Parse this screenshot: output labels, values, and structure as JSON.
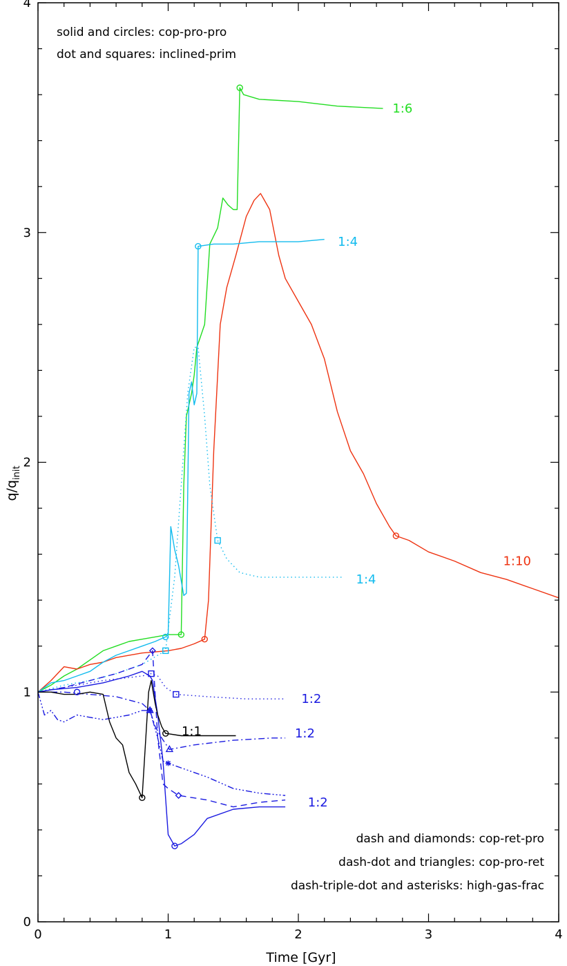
{
  "chart_data": {
    "type": "line",
    "xlabel": "Time [Gyr]",
    "ylabel_main": "q/q",
    "ylabel_sub": "init",
    "xlim": [
      0,
      4
    ],
    "ylim": [
      0,
      4
    ],
    "x_ticks": [
      "0",
      "1",
      "2",
      "3",
      "4"
    ],
    "y_ticks": [
      "0",
      "1",
      "2",
      "3",
      "4"
    ],
    "legend_top": [
      "solid and circles: cop-pro-pro",
      "dot and squares: inclined-prim"
    ],
    "legend_bottom": [
      "dash and diamonds: cop-ret-pro",
      "dash-dot and triangles: cop-pro-ret",
      "dash-triple-dot and asterisks: high-gas-frac"
    ],
    "colors": {
      "green": "#22dd22",
      "red": "#ee3311",
      "cyan": "#11bbee",
      "blue": "#1a1ae0",
      "black": "#000000"
    },
    "labels": [
      {
        "text": "1:6",
        "x": 2.8,
        "y": 3.54,
        "color": "green"
      },
      {
        "text": "1:4",
        "x": 2.38,
        "y": 2.96,
        "color": "cyan"
      },
      {
        "text": "1:10",
        "x": 3.68,
        "y": 1.57,
        "color": "red"
      },
      {
        "text": "1:4",
        "x": 2.52,
        "y": 1.49,
        "color": "cyan"
      },
      {
        "text": "1:2",
        "x": 2.1,
        "y": 0.97,
        "color": "blue"
      },
      {
        "text": "1:1",
        "x": 1.18,
        "y": 0.83,
        "color": "black"
      },
      {
        "text": "1:2",
        "x": 2.05,
        "y": 0.82,
        "color": "blue"
      },
      {
        "text": "1:2",
        "x": 2.15,
        "y": 0.52,
        "color": "blue"
      }
    ],
    "series": [
      {
        "color": "green",
        "style": "solid",
        "marker": "circle",
        "marker_points": [
          [
            1.1,
            1.25
          ],
          [
            1.55,
            3.63
          ]
        ],
        "points": [
          [
            0,
            1.0
          ],
          [
            0.1,
            1.03
          ],
          [
            0.2,
            1.07
          ],
          [
            0.3,
            1.1
          ],
          [
            0.4,
            1.14
          ],
          [
            0.5,
            1.18
          ],
          [
            0.6,
            1.2
          ],
          [
            0.7,
            1.22
          ],
          [
            0.8,
            1.23
          ],
          [
            0.9,
            1.24
          ],
          [
            1.0,
            1.25
          ],
          [
            1.05,
            1.25
          ],
          [
            1.1,
            1.25
          ],
          [
            1.12,
            1.9
          ],
          [
            1.14,
            2.2
          ],
          [
            1.18,
            2.3
          ],
          [
            1.2,
            2.38
          ],
          [
            1.22,
            2.5
          ],
          [
            1.28,
            2.6
          ],
          [
            1.32,
            2.95
          ],
          [
            1.38,
            3.02
          ],
          [
            1.42,
            3.15
          ],
          [
            1.46,
            3.12
          ],
          [
            1.5,
            3.1
          ],
          [
            1.53,
            3.1
          ],
          [
            1.55,
            3.63
          ],
          [
            1.58,
            3.6
          ],
          [
            1.7,
            3.58
          ],
          [
            2.0,
            3.57
          ],
          [
            2.3,
            3.55
          ],
          [
            2.65,
            3.54
          ]
        ]
      },
      {
        "color": "red",
        "style": "solid",
        "marker": "circle",
        "marker_points": [
          [
            1.28,
            1.23
          ],
          [
            2.75,
            1.68
          ]
        ],
        "points": [
          [
            0,
            1.0
          ],
          [
            0.1,
            1.05
          ],
          [
            0.2,
            1.11
          ],
          [
            0.3,
            1.1
          ],
          [
            0.4,
            1.12
          ],
          [
            0.5,
            1.13
          ],
          [
            0.6,
            1.15
          ],
          [
            0.8,
            1.17
          ],
          [
            1.0,
            1.18
          ],
          [
            1.1,
            1.19
          ],
          [
            1.2,
            1.21
          ],
          [
            1.28,
            1.23
          ],
          [
            1.31,
            1.4
          ],
          [
            1.35,
            2.05
          ],
          [
            1.4,
            2.6
          ],
          [
            1.45,
            2.76
          ],
          [
            1.52,
            2.9
          ],
          [
            1.6,
            3.07
          ],
          [
            1.66,
            3.14
          ],
          [
            1.71,
            3.17
          ],
          [
            1.78,
            3.1
          ],
          [
            1.85,
            2.9
          ],
          [
            1.9,
            2.8
          ],
          [
            2.0,
            2.7
          ],
          [
            2.1,
            2.6
          ],
          [
            2.2,
            2.45
          ],
          [
            2.3,
            2.22
          ],
          [
            2.4,
            2.05
          ],
          [
            2.5,
            1.95
          ],
          [
            2.6,
            1.82
          ],
          [
            2.7,
            1.72
          ],
          [
            2.75,
            1.68
          ],
          [
            2.85,
            1.66
          ],
          [
            3.0,
            1.61
          ],
          [
            3.2,
            1.57
          ],
          [
            3.4,
            1.52
          ],
          [
            3.6,
            1.49
          ],
          [
            3.8,
            1.45
          ],
          [
            4.0,
            1.41
          ]
        ]
      },
      {
        "color": "cyan",
        "style": "solid",
        "marker": "circle",
        "marker_points": [
          [
            0.98,
            1.24
          ],
          [
            1.23,
            2.94
          ]
        ],
        "points": [
          [
            0,
            1.0
          ],
          [
            0.1,
            1.04
          ],
          [
            0.2,
            1.05
          ],
          [
            0.3,
            1.07
          ],
          [
            0.4,
            1.09
          ],
          [
            0.5,
            1.13
          ],
          [
            0.6,
            1.16
          ],
          [
            0.7,
            1.18
          ],
          [
            0.8,
            1.2
          ],
          [
            0.9,
            1.22
          ],
          [
            0.98,
            1.24
          ],
          [
            1.0,
            1.25
          ],
          [
            1.02,
            1.72
          ],
          [
            1.05,
            1.62
          ],
          [
            1.08,
            1.55
          ],
          [
            1.12,
            1.42
          ],
          [
            1.14,
            1.43
          ],
          [
            1.16,
            2.3
          ],
          [
            1.18,
            2.35
          ],
          [
            1.2,
            2.25
          ],
          [
            1.22,
            2.3
          ],
          [
            1.23,
            2.94
          ],
          [
            1.35,
            2.95
          ],
          [
            1.5,
            2.95
          ],
          [
            1.7,
            2.96
          ],
          [
            2.0,
            2.96
          ],
          [
            2.2,
            2.97
          ]
        ]
      },
      {
        "color": "cyan",
        "style": "dot",
        "marker": "square",
        "marker_points": [
          [
            0.98,
            1.18
          ],
          [
            1.38,
            1.66
          ]
        ],
        "points": [
          [
            0,
            1.0
          ],
          [
            0.2,
            1.03
          ],
          [
            0.4,
            1.05
          ],
          [
            0.6,
            1.08
          ],
          [
            0.8,
            1.12
          ],
          [
            0.98,
            1.18
          ],
          [
            1.05,
            1.5
          ],
          [
            1.1,
            1.9
          ],
          [
            1.15,
            2.3
          ],
          [
            1.2,
            2.5
          ],
          [
            1.23,
            2.5
          ],
          [
            1.28,
            2.2
          ],
          [
            1.32,
            1.9
          ],
          [
            1.38,
            1.66
          ],
          [
            1.45,
            1.58
          ],
          [
            1.55,
            1.52
          ],
          [
            1.7,
            1.5
          ],
          [
            2.0,
            1.5
          ],
          [
            2.35,
            1.5
          ]
        ]
      },
      {
        "color": "blue",
        "style": "solid",
        "marker": "circle",
        "marker_points": [
          [
            0.3,
            1.0
          ],
          [
            1.05,
            0.33
          ]
        ],
        "points": [
          [
            0,
            1.0
          ],
          [
            0.1,
            1.01
          ],
          [
            0.3,
            1.02
          ],
          [
            0.5,
            1.04
          ],
          [
            0.7,
            1.07
          ],
          [
            0.8,
            1.09
          ],
          [
            0.86,
            1.07
          ],
          [
            0.88,
            1.05
          ],
          [
            0.92,
            0.9
          ],
          [
            0.96,
            0.7
          ],
          [
            1.0,
            0.38
          ],
          [
            1.05,
            0.33
          ],
          [
            1.1,
            0.34
          ],
          [
            1.2,
            0.38
          ],
          [
            1.3,
            0.45
          ],
          [
            1.5,
            0.49
          ],
          [
            1.7,
            0.5
          ],
          [
            1.9,
            0.5
          ]
        ]
      },
      {
        "color": "blue",
        "style": "dash",
        "marker": "diamond",
        "marker_points": [
          [
            0.88,
            1.18
          ],
          [
            1.08,
            0.55
          ]
        ],
        "points": [
          [
            0,
            1.0
          ],
          [
            0.2,
            1.02
          ],
          [
            0.4,
            1.05
          ],
          [
            0.6,
            1.08
          ],
          [
            0.8,
            1.12
          ],
          [
            0.88,
            1.18
          ],
          [
            0.92,
            0.8
          ],
          [
            0.96,
            0.6
          ],
          [
            1.0,
            0.58
          ],
          [
            1.08,
            0.55
          ],
          [
            1.3,
            0.53
          ],
          [
            1.5,
            0.5
          ],
          [
            1.7,
            0.52
          ],
          [
            1.9,
            0.53
          ]
        ]
      },
      {
        "color": "blue",
        "style": "dot",
        "marker": "square",
        "marker_points": [
          [
            0.87,
            1.08
          ],
          [
            1.06,
            0.99
          ]
        ],
        "points": [
          [
            0,
            1.0
          ],
          [
            0.2,
            1.02
          ],
          [
            0.5,
            1.05
          ],
          [
            0.8,
            1.07
          ],
          [
            0.87,
            1.08
          ],
          [
            0.92,
            1.07
          ],
          [
            0.98,
            1.02
          ],
          [
            1.06,
            0.99
          ],
          [
            1.3,
            0.98
          ],
          [
            1.6,
            0.97
          ],
          [
            1.9,
            0.97
          ]
        ]
      },
      {
        "color": "blue",
        "style": "dashdot",
        "marker": "triangle",
        "marker_points": [
          [
            0.86,
            0.92
          ],
          [
            1.01,
            0.75
          ]
        ],
        "points": [
          [
            0,
            1.0
          ],
          [
            0.2,
            1.0
          ],
          [
            0.4,
            0.99
          ],
          [
            0.6,
            0.98
          ],
          [
            0.8,
            0.95
          ],
          [
            0.86,
            0.92
          ],
          [
            0.9,
            0.85
          ],
          [
            0.95,
            0.8
          ],
          [
            1.01,
            0.75
          ],
          [
            1.2,
            0.77
          ],
          [
            1.5,
            0.79
          ],
          [
            1.8,
            0.8
          ],
          [
            1.9,
            0.8
          ]
        ]
      },
      {
        "color": "blue",
        "style": "dashdotdot",
        "marker": "asterisk",
        "marker_points": [
          [
            0.86,
            0.92
          ],
          [
            1.0,
            0.69
          ]
        ],
        "points": [
          [
            0,
            1.0
          ],
          [
            0.05,
            0.9
          ],
          [
            0.1,
            0.92
          ],
          [
            0.15,
            0.88
          ],
          [
            0.2,
            0.87
          ],
          [
            0.3,
            0.9
          ],
          [
            0.4,
            0.89
          ],
          [
            0.5,
            0.88
          ],
          [
            0.6,
            0.89
          ],
          [
            0.7,
            0.9
          ],
          [
            0.8,
            0.92
          ],
          [
            0.86,
            0.92
          ],
          [
            0.92,
            0.8
          ],
          [
            0.96,
            0.7
          ],
          [
            1.0,
            0.69
          ],
          [
            1.1,
            0.67
          ],
          [
            1.3,
            0.63
          ],
          [
            1.5,
            0.58
          ],
          [
            1.7,
            0.56
          ],
          [
            1.9,
            0.55
          ]
        ]
      },
      {
        "color": "black",
        "style": "solid",
        "marker": "circle",
        "marker_points": [
          [
            0.8,
            0.54
          ],
          [
            0.98,
            0.82
          ]
        ],
        "points": [
          [
            0,
            1.0
          ],
          [
            0.1,
            1.0
          ],
          [
            0.2,
            0.99
          ],
          [
            0.3,
            0.99
          ],
          [
            0.4,
            1.0
          ],
          [
            0.5,
            0.99
          ],
          [
            0.55,
            0.87
          ],
          [
            0.6,
            0.8
          ],
          [
            0.65,
            0.77
          ],
          [
            0.7,
            0.65
          ],
          [
            0.75,
            0.6
          ],
          [
            0.8,
            0.54
          ],
          [
            0.85,
            1.0
          ],
          [
            0.87,
            1.05
          ],
          [
            0.9,
            0.95
          ],
          [
            0.92,
            0.9
          ],
          [
            0.95,
            0.85
          ],
          [
            0.98,
            0.82
          ],
          [
            1.1,
            0.81
          ],
          [
            1.3,
            0.81
          ],
          [
            1.52,
            0.81
          ]
        ]
      }
    ]
  }
}
